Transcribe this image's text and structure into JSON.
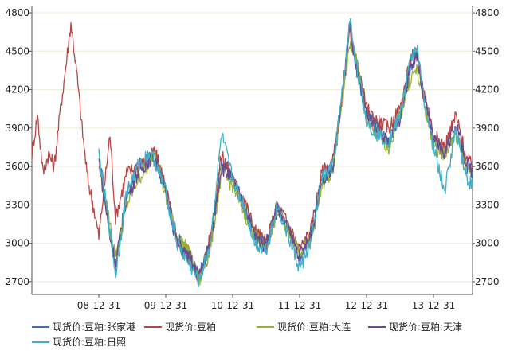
{
  "chart_data": {
    "type": "line",
    "title": "",
    "xlabel": "",
    "ylabel": "",
    "ylim": [
      2600,
      4850
    ],
    "y_ticks": [
      2700,
      3000,
      3300,
      3600,
      3900,
      4200,
      4500,
      4800
    ],
    "x_ticks": [
      "08-12-31",
      "09-12-31",
      "10-12-31",
      "11-12-31",
      "12-12-31",
      "13-12-31"
    ],
    "x_range": [
      "2007-12",
      "2014-07"
    ],
    "grid": "horizontal",
    "legend_position": "bottom",
    "series": [
      {
        "name": "现货价:豆粕:张家港",
        "color": "#3e6db3",
        "points": [
          [
            "2008-12",
            3680
          ],
          [
            "2009-02",
            3100
          ],
          [
            "2009-03",
            2800
          ],
          [
            "2009-05",
            3400
          ],
          [
            "2009-07",
            3600
          ],
          [
            "2009-09",
            3650
          ],
          [
            "2009-10",
            3700
          ],
          [
            "2009-12",
            3400
          ],
          [
            "2010-02",
            3050
          ],
          [
            "2010-04",
            2900
          ],
          [
            "2010-06",
            2750
          ],
          [
            "2010-08",
            3000
          ],
          [
            "2010-10",
            3650
          ],
          [
            "2010-12",
            3500
          ],
          [
            "2011-02",
            3300
          ],
          [
            "2011-04",
            3050
          ],
          [
            "2011-06",
            3000
          ],
          [
            "2011-08",
            3300
          ],
          [
            "2011-10",
            3100
          ],
          [
            "2011-12",
            2900
          ],
          [
            "2012-02",
            3050
          ],
          [
            "2012-04",
            3500
          ],
          [
            "2012-06",
            3600
          ],
          [
            "2012-08",
            4300
          ],
          [
            "2012-09",
            4700
          ],
          [
            "2012-10",
            4400
          ],
          [
            "2012-12",
            4000
          ],
          [
            "2013-02",
            3900
          ],
          [
            "2013-04",
            3800
          ],
          [
            "2013-06",
            4000
          ],
          [
            "2013-08",
            4400
          ],
          [
            "2013-09",
            4450
          ],
          [
            "2013-10",
            4200
          ],
          [
            "2013-12",
            3800
          ],
          [
            "2014-02",
            3700
          ],
          [
            "2014-04",
            3900
          ],
          [
            "2014-06",
            3600
          ],
          [
            "2014-07",
            3550
          ]
        ]
      },
      {
        "name": "现货价:豆粕",
        "color": "#b84545",
        "points": [
          [
            "2007-12",
            3700
          ],
          [
            "2008-01",
            4000
          ],
          [
            "2008-02",
            3550
          ],
          [
            "2008-03",
            3700
          ],
          [
            "2008-04",
            3600
          ],
          [
            "2008-05",
            4000
          ],
          [
            "2008-06",
            4350
          ],
          [
            "2008-07",
            4720
          ],
          [
            "2008-08",
            4350
          ],
          [
            "2008-09",
            3900
          ],
          [
            "2008-10",
            3500
          ],
          [
            "2008-11",
            3300
          ],
          [
            "2008-12",
            3050
          ],
          [
            "2009-01",
            3450
          ],
          [
            "2009-02",
            3850
          ],
          [
            "2009-03",
            3200
          ],
          [
            "2009-05",
            3550
          ],
          [
            "2009-07",
            3600
          ],
          [
            "2009-09",
            3650
          ],
          [
            "2009-10",
            3720
          ],
          [
            "2009-12",
            3450
          ],
          [
            "2010-02",
            3000
          ],
          [
            "2010-04",
            2950
          ],
          [
            "2010-06",
            2720
          ],
          [
            "2010-08",
            3050
          ],
          [
            "2010-10",
            3700
          ],
          [
            "2010-12",
            3500
          ],
          [
            "2011-02",
            3350
          ],
          [
            "2011-04",
            3100
          ],
          [
            "2011-06",
            3000
          ],
          [
            "2011-08",
            3300
          ],
          [
            "2011-10",
            3150
          ],
          [
            "2011-12",
            2950
          ],
          [
            "2012-02",
            3100
          ],
          [
            "2012-04",
            3550
          ],
          [
            "2012-06",
            3650
          ],
          [
            "2012-08",
            4200
          ],
          [
            "2012-09",
            4650
          ],
          [
            "2012-10",
            4450
          ],
          [
            "2012-12",
            4050
          ],
          [
            "2013-02",
            3950
          ],
          [
            "2013-04",
            3900
          ],
          [
            "2013-06",
            4050
          ],
          [
            "2013-08",
            4450
          ],
          [
            "2013-09",
            4500
          ],
          [
            "2013-10",
            4250
          ],
          [
            "2013-12",
            3850
          ],
          [
            "2014-02",
            3750
          ],
          [
            "2014-04",
            4000
          ],
          [
            "2014-06",
            3650
          ],
          [
            "2014-07",
            3600
          ]
        ]
      },
      {
        "name": "现货价:豆粕:大连",
        "color": "#9ab23a",
        "points": [
          [
            "2008-12",
            3600
          ],
          [
            "2009-02",
            3150
          ],
          [
            "2009-03",
            2900
          ],
          [
            "2009-05",
            3300
          ],
          [
            "2009-07",
            3500
          ],
          [
            "2009-09",
            3600
          ],
          [
            "2009-10",
            3750
          ],
          [
            "2009-12",
            3350
          ],
          [
            "2010-02",
            3050
          ],
          [
            "2010-04",
            2950
          ],
          [
            "2010-06",
            2700
          ],
          [
            "2010-08",
            2950
          ],
          [
            "2010-10",
            3550
          ],
          [
            "2010-12",
            3450
          ],
          [
            "2011-02",
            3250
          ],
          [
            "2011-04",
            3050
          ],
          [
            "2011-06",
            2950
          ],
          [
            "2011-08",
            3250
          ],
          [
            "2011-10",
            3100
          ],
          [
            "2011-12",
            2950
          ],
          [
            "2012-02",
            3000
          ],
          [
            "2012-04",
            3450
          ],
          [
            "2012-06",
            3550
          ],
          [
            "2012-08",
            4250
          ],
          [
            "2012-09",
            4550
          ],
          [
            "2012-10",
            4500
          ],
          [
            "2012-12",
            3950
          ],
          [
            "2013-02",
            3850
          ],
          [
            "2013-04",
            3750
          ],
          [
            "2013-06",
            4000
          ],
          [
            "2013-08",
            4300
          ],
          [
            "2013-09",
            4350
          ],
          [
            "2013-10",
            4150
          ],
          [
            "2013-12",
            3750
          ],
          [
            "2014-02",
            3700
          ],
          [
            "2014-04",
            3850
          ],
          [
            "2014-06",
            3600
          ],
          [
            "2014-07",
            3550
          ]
        ]
      },
      {
        "name": "现货价:豆粕:天津",
        "color": "#6a4b8f",
        "points": [
          [
            "2008-12",
            3650
          ],
          [
            "2009-02",
            3050
          ],
          [
            "2009-03",
            2850
          ],
          [
            "2009-05",
            3350
          ],
          [
            "2009-07",
            3550
          ],
          [
            "2009-09",
            3650
          ],
          [
            "2009-10",
            3680
          ],
          [
            "2009-12",
            3400
          ],
          [
            "2010-02",
            3000
          ],
          [
            "2010-04",
            2900
          ],
          [
            "2010-06",
            2730
          ],
          [
            "2010-08",
            3000
          ],
          [
            "2010-10",
            3600
          ],
          [
            "2010-12",
            3500
          ],
          [
            "2011-02",
            3300
          ],
          [
            "2011-04",
            3050
          ],
          [
            "2011-06",
            2980
          ],
          [
            "2011-08",
            3280
          ],
          [
            "2011-10",
            3100
          ],
          [
            "2011-12",
            2900
          ],
          [
            "2012-02",
            3050
          ],
          [
            "2012-04",
            3500
          ],
          [
            "2012-06",
            3600
          ],
          [
            "2012-08",
            4300
          ],
          [
            "2012-09",
            4700
          ],
          [
            "2012-10",
            4400
          ],
          [
            "2012-12",
            4000
          ],
          [
            "2013-02",
            3880
          ],
          [
            "2013-04",
            3800
          ],
          [
            "2013-06",
            3980
          ],
          [
            "2013-08",
            4400
          ],
          [
            "2013-09",
            4480
          ],
          [
            "2013-10",
            4200
          ],
          [
            "2013-12",
            3800
          ],
          [
            "2014-02",
            3700
          ],
          [
            "2014-04",
            3950
          ],
          [
            "2014-06",
            3620
          ],
          [
            "2014-07",
            3560
          ]
        ]
      },
      {
        "name": "现货价:豆粕:日照",
        "color": "#3fb0c7",
        "points": [
          [
            "2008-12",
            3700
          ],
          [
            "2009-02",
            3100
          ],
          [
            "2009-03",
            2750
          ],
          [
            "2009-05",
            3400
          ],
          [
            "2009-07",
            3600
          ],
          [
            "2009-09",
            3700
          ],
          [
            "2009-10",
            3650
          ],
          [
            "2009-12",
            3400
          ],
          [
            "2010-02",
            3000
          ],
          [
            "2010-04",
            2850
          ],
          [
            "2010-06",
            2700
          ],
          [
            "2010-08",
            3000
          ],
          [
            "2010-10",
            3850
          ],
          [
            "2010-12",
            3500
          ],
          [
            "2011-02",
            3300
          ],
          [
            "2011-04",
            3000
          ],
          [
            "2011-06",
            2950
          ],
          [
            "2011-08",
            3300
          ],
          [
            "2011-10",
            3050
          ],
          [
            "2011-12",
            2800
          ],
          [
            "2012-02",
            3000
          ],
          [
            "2012-04",
            3500
          ],
          [
            "2012-06",
            3600
          ],
          [
            "2012-08",
            4300
          ],
          [
            "2012-09",
            4750
          ],
          [
            "2012-10",
            4450
          ],
          [
            "2012-12",
            3950
          ],
          [
            "2013-02",
            3850
          ],
          [
            "2013-04",
            3800
          ],
          [
            "2013-06",
            4000
          ],
          [
            "2013-08",
            4450
          ],
          [
            "2013-09",
            4550
          ],
          [
            "2013-10",
            4200
          ],
          [
            "2013-12",
            3750
          ],
          [
            "2014-02",
            3400
          ],
          [
            "2014-04",
            3900
          ],
          [
            "2014-06",
            3500
          ],
          [
            "2014-07",
            3450
          ]
        ]
      }
    ]
  }
}
